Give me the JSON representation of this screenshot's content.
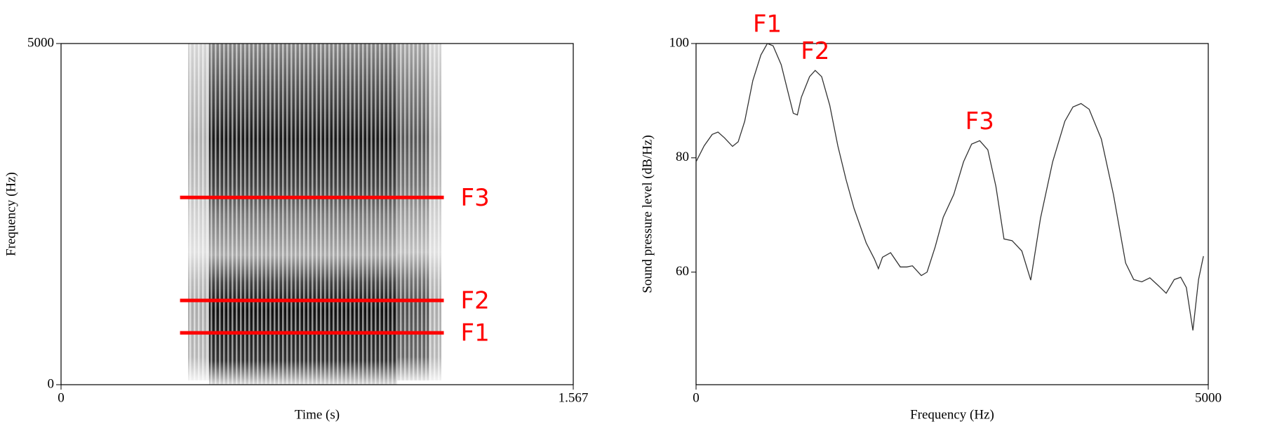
{
  "chart_data": [
    {
      "type": "spectrogram",
      "xlabel": "Time (s)",
      "ylabel": "Frequency (Hz)",
      "xlim": [
        0,
        1.567
      ],
      "ylim": [
        0,
        5000
      ],
      "xticks": [
        0,
        1.567
      ],
      "yticks": [
        0,
        5000
      ],
      "formants": [
        {
          "name": "F1",
          "value": 760,
          "x": [
            0.364,
            1.171
          ],
          "color": "#ff0000"
        },
        {
          "name": "F2",
          "value": 1235,
          "x": [
            0.364,
            1.171
          ],
          "color": "#ff0000"
        },
        {
          "name": "F3",
          "value": 2744,
          "x": [
            0.364,
            1.171
          ],
          "color": "#ff0000"
        }
      ]
    },
    {
      "type": "line",
      "xlabel": "Frequency (Hz)",
      "ylabel": "Sound pressure level (dB/Hz)",
      "xlim": [
        0,
        5000
      ],
      "ylim": [
        40.3,
        100
      ],
      "xticks": [
        0,
        5000
      ],
      "yticks": [
        60,
        80,
        100
      ],
      "x": [
        0,
        79,
        158,
        214,
        277,
        356,
        411,
        475,
        554,
        633,
        696,
        752,
        831,
        910,
        949,
        989,
        1028,
        1108,
        1163,
        1226,
        1305,
        1384,
        1464,
        1543,
        1661,
        1741,
        1780,
        1820,
        1899,
        1994,
        2057,
        2112,
        2199,
        2255,
        2334,
        2413,
        2516,
        2611,
        2690,
        2769,
        2848,
        2927,
        3006,
        3085,
        3180,
        3267,
        3362,
        3481,
        3600,
        3679,
        3758,
        3837,
        3956,
        4074,
        4193,
        4272,
        4351,
        4430,
        4509,
        4589,
        4668,
        4731,
        4786,
        4850,
        4905,
        4953
      ],
      "series": [
        {
          "color": "#333333",
          "values": [
            79.3,
            82.1,
            84.1,
            84.5,
            83.5,
            82.0,
            82.8,
            86.4,
            93.5,
            98.0,
            100,
            99.6,
            96.3,
            90.6,
            87.8,
            87.5,
            90.6,
            94.2,
            95.3,
            94.2,
            89.2,
            82.1,
            76.2,
            71.1,
            65.1,
            62.3,
            60.6,
            62.6,
            63.4,
            60.9,
            60.9,
            61.1,
            59.4,
            60.0,
            64.4,
            69.6,
            73.6,
            79.3,
            82.4,
            83.0,
            81.4,
            75.0,
            65.8,
            65.5,
            63.7,
            58.6,
            69.4,
            79.3,
            86.4,
            88.9,
            89.5,
            88.5,
            83.3,
            73.6,
            61.6,
            58.7,
            58.3,
            59.0,
            57.7,
            56.3,
            58.7,
            59.1,
            57.3,
            49.8,
            58.7,
            62.8
          ]
        }
      ],
      "annotations": [
        {
          "text": "F1",
          "x": 696,
          "y": 100
        },
        {
          "text": "F2",
          "x": 1163,
          "y": 95.3
        },
        {
          "text": "F3",
          "x": 2769,
          "y": 83.0
        }
      ]
    }
  ]
}
